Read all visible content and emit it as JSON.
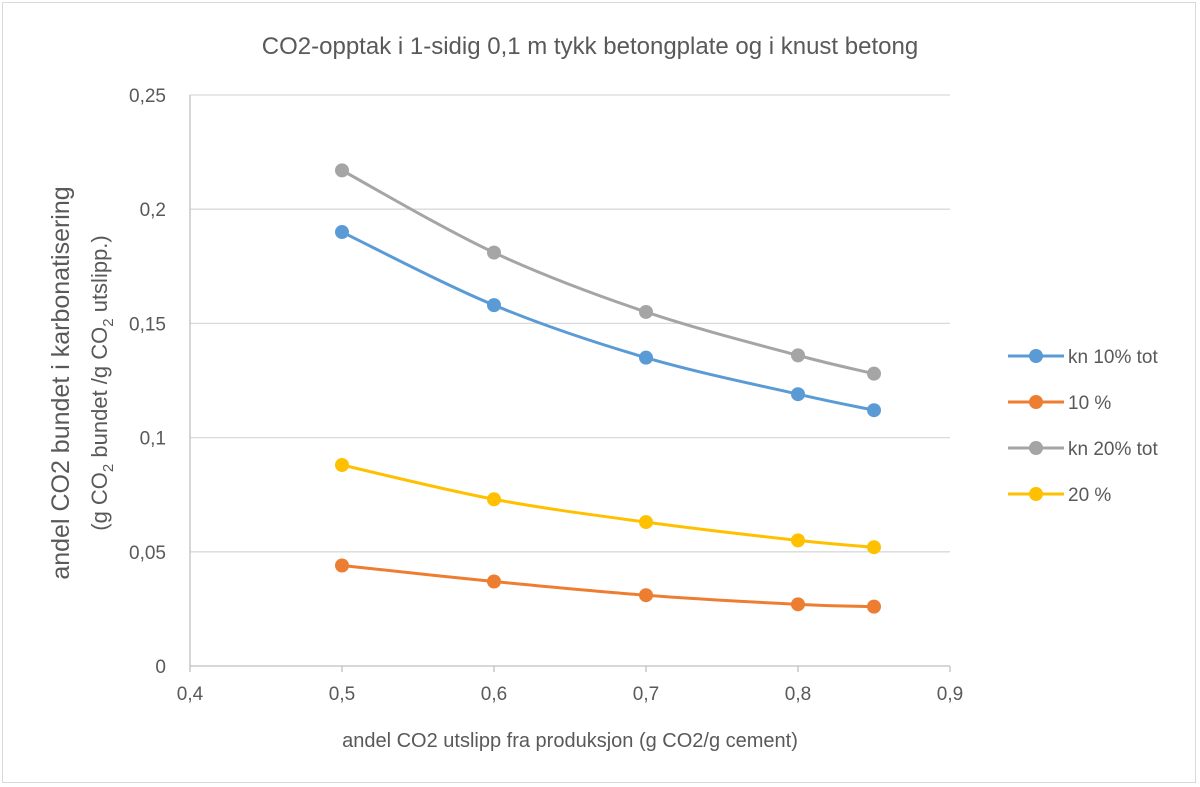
{
  "chart_data": {
    "type": "line",
    "title": "CO2-opptak i 1-sidig 0,1 m tykk betongplate og i knust betong",
    "xlabel": "andel CO2 utslipp fra produksjon  (g CO2/g cement)",
    "ylabel_line1": "andel CO2 bundet i karbonatisering",
    "ylabel_line2": {
      "open": "(g CO",
      "sub1": "2",
      "mid": " bundet /g CO",
      "sub2": "2",
      "close": " utslipp.)"
    },
    "xlim": [
      0.4,
      0.9
    ],
    "ylim": [
      0,
      0.25
    ],
    "x_ticks": [
      {
        "value": 0.4,
        "label": "0,4"
      },
      {
        "value": 0.5,
        "label": "0,5"
      },
      {
        "value": 0.6,
        "label": "0,6"
      },
      {
        "value": 0.7,
        "label": "0,7"
      },
      {
        "value": 0.8,
        "label": "0,8"
      },
      {
        "value": 0.9,
        "label": "0,9"
      }
    ],
    "y_ticks": [
      {
        "value": 0,
        "label": "0"
      },
      {
        "value": 0.05,
        "label": "0,05"
      },
      {
        "value": 0.1,
        "label": "0,1"
      },
      {
        "value": 0.15,
        "label": "0,15"
      },
      {
        "value": 0.2,
        "label": "0,2"
      },
      {
        "value": 0.25,
        "label": "0,25"
      }
    ],
    "grid": "horizontal",
    "legend_position": "right",
    "x": [
      0.5,
      0.6,
      0.7,
      0.8,
      0.85
    ],
    "series": [
      {
        "name": "kn 10% tot",
        "color": "#5b9bd5",
        "values": [
          0.19,
          0.158,
          0.135,
          0.119,
          0.112
        ]
      },
      {
        "name": "10 %",
        "color": "#ed7d31",
        "values": [
          0.044,
          0.037,
          0.031,
          0.027,
          0.026
        ]
      },
      {
        "name": "kn 20% tot",
        "color": "#a5a5a5",
        "values": [
          0.217,
          0.181,
          0.155,
          0.136,
          0.128
        ]
      },
      {
        "name": "20 %",
        "color": "#ffc000",
        "values": [
          0.088,
          0.073,
          0.063,
          0.055,
          0.052
        ]
      }
    ]
  }
}
